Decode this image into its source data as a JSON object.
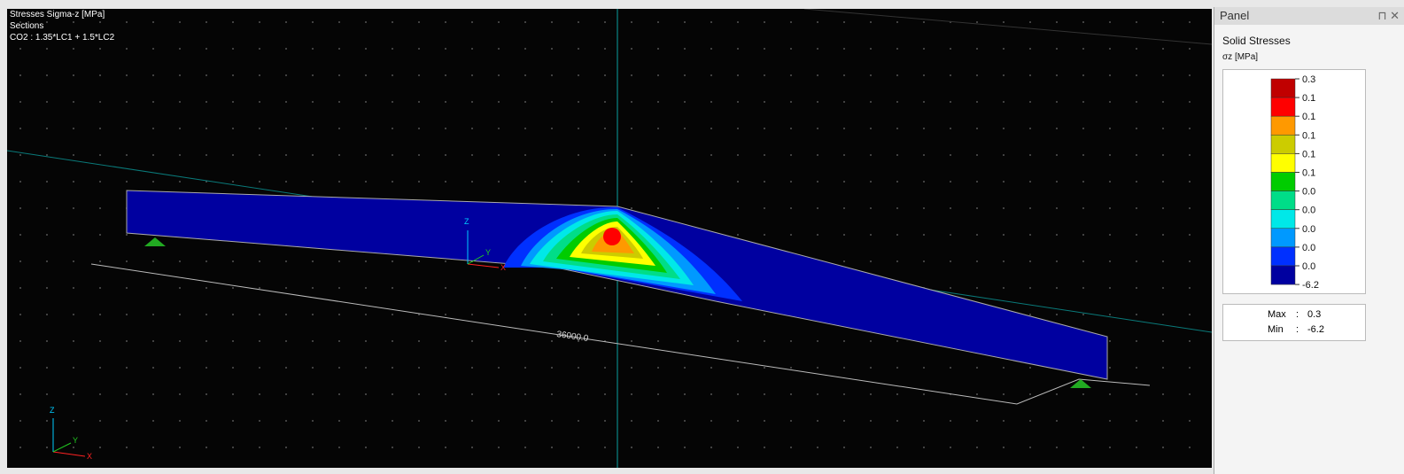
{
  "viewport": {
    "info": [
      "Stresses Sigma-z [MPa]",
      "Sections",
      "CO2 : 1.35*LC1 + 1.5*LC2"
    ],
    "dimension": "36000.0",
    "local_axes": {
      "z": "Z",
      "y": "Y",
      "x": "X"
    },
    "global_axes": {
      "z": "Z",
      "y": "Y",
      "x": "X"
    }
  },
  "panel": {
    "title": "Panel",
    "heading": "Solid Stresses",
    "unit": "σz [MPa]",
    "legend": {
      "labels": [
        "0.3",
        "0.1",
        "0.1",
        "0.1",
        "0.1",
        "0.1",
        "0.0",
        "0.0",
        "0.0",
        "0.0",
        "0.0",
        "-6.2"
      ],
      "colors": [
        "#c00000",
        "#ff0000",
        "#ff9900",
        "#cccc00",
        "#ffff00",
        "#00cc00",
        "#00dd88",
        "#00e8e8",
        "#0099ff",
        "#0030ff",
        "#0000a0"
      ]
    },
    "summary": {
      "max_label": "Max",
      "max_value": "0.3",
      "min_label": "Min",
      "min_value": "-6.2",
      "sep": ":"
    }
  }
}
